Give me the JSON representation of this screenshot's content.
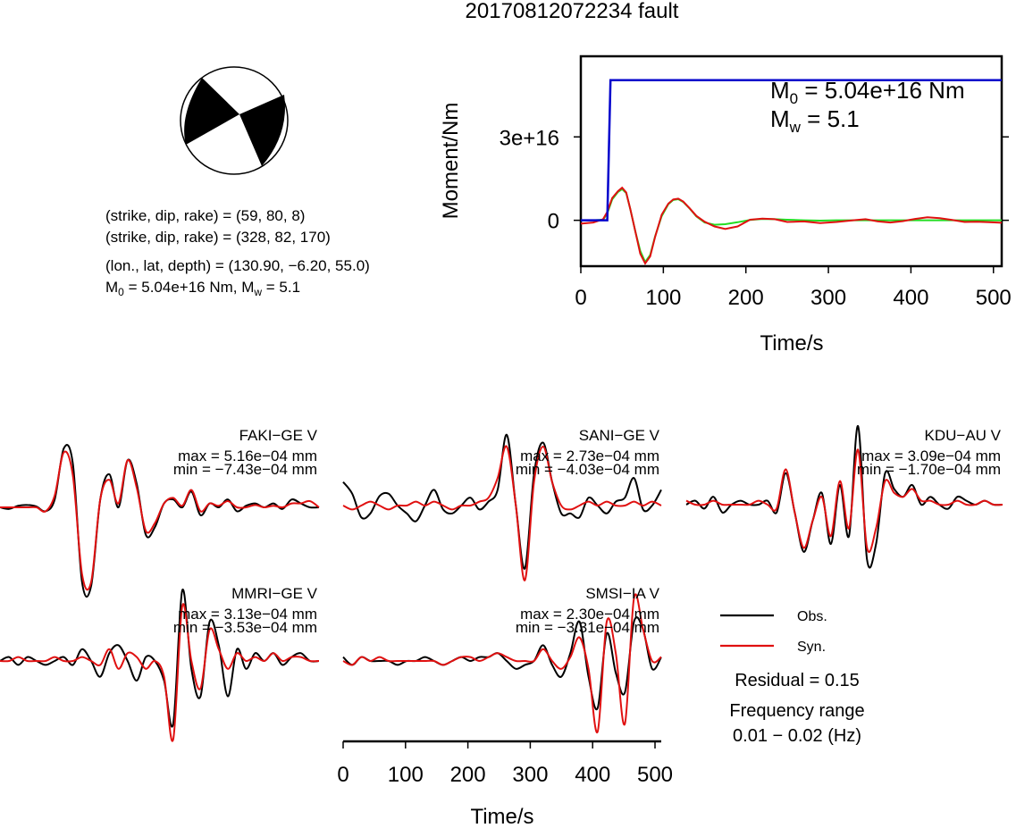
{
  "title": "20170812072234 fault",
  "mechanism": {
    "lines": [
      "(strike, dip, rake) = (59, 80, 8)",
      "(strike, dip, rake) = (328, 82, 170)",
      "(lon., lat, depth) = (130.90, −6.20, 55.0)"
    ],
    "m0_label": "M",
    "m0_sub": "0",
    "m0_text": " = 5.04e+16 Nm, M",
    "mw_sub": "w",
    "mw_text": " = 5.1"
  },
  "colors": {
    "obs": "#000000",
    "syn": "#e01010",
    "moment": "#0000cc",
    "stf_obs": "#e01010",
    "stf_syn": "#22dd22"
  },
  "chart_data": [
    {
      "type": "line",
      "name": "moment_rate",
      "ylabel": "Moment/Nm",
      "xlabel": "Time/s",
      "xlim": [
        0,
        510
      ],
      "x_ticks": [
        "0",
        "100",
        "200",
        "300",
        "400",
        "500"
      ],
      "x_tick_values": [
        0,
        100,
        200,
        300,
        400,
        500
      ],
      "y_ticks": [
        "0",
        "3e+16"
      ],
      "y_tick_values": [
        0,
        3e+16
      ],
      "ylim": [
        -1.65e+16,
        5.9e+16
      ],
      "annotation_m0": {
        "base": "M",
        "sub": "0",
        "text": " = 5.04e+16 Nm"
      },
      "annotation_mw": {
        "base": "M",
        "sub": "w",
        "text": " = 5.1"
      },
      "cumulative_moment": {
        "x": [
          0,
          27,
          32,
          36,
          510
        ],
        "y": [
          0,
          0,
          0,
          5.04e+16,
          5.04e+16
        ]
      },
      "series": [
        {
          "x": [
            0,
            15,
            27,
            32,
            38,
            45,
            50,
            55,
            60,
            66,
            72,
            78,
            84,
            90,
            98,
            106,
            112,
            118,
            124,
            132,
            140,
            150,
            162,
            175,
            190,
            205,
            220,
            235,
            250,
            270,
            290,
            310,
            330,
            345,
            360,
            375,
            390,
            405,
            420,
            435,
            450,
            465,
            480,
            495,
            510
          ],
          "y": [
            -1200000000000000.0,
            -800000000000000.0,
            400000000000000.0,
            3000000000000000.0,
            8000000000000000.0,
            1.05e+16,
            1.17e+16,
            1e+16,
            4000000000000000.0,
            -4000000000000000.0,
            -1.2e+16,
            -1.55e+16,
            -1.3e+16,
            -6000000000000000.0,
            2000000000000000.0,
            6000000000000000.0,
            7500000000000000.0,
            7800000000000000.0,
            6800000000000000.0,
            4300000000000000.0,
            1600000000000000.0,
            -500000000000000.0,
            -2200000000000000.0,
            -3100000000000000.0,
            -2200000000000000.0,
            200000000000000.0,
            600000000000000.0,
            400000000000000.0,
            -600000000000000.0,
            -400000000000000.0,
            -1000000000000000.0,
            -600000000000000.0,
            0.0,
            400000000000000.0,
            -400000000000000.0,
            -800000000000000.0,
            -300000000000000.0,
            500000000000000.0,
            1100000000000000.0,
            800000000000000.0,
            100000000000000.0,
            -600000000000000.0,
            -500000000000000.0,
            -700000000000000.0,
            -900000000000000.0
          ]
        },
        {
          "x": [
            0,
            15,
            27,
            32,
            38,
            45,
            50,
            55,
            60,
            66,
            72,
            78,
            84,
            90,
            98,
            106,
            112,
            118,
            124,
            132,
            140,
            150,
            162,
            175,
            190,
            205,
            220,
            235,
            250,
            270,
            290,
            310,
            330,
            350,
            380,
            410,
            440,
            470,
            510
          ],
          "y": [
            0,
            0,
            200000000000000.0,
            2500000000000000.0,
            7500000000000000.0,
            1.02e+16,
            1.12e+16,
            9800000000000000.0,
            4000000000000000.0,
            -4000000000000000.0,
            -1.1e+16,
            -1.5e+16,
            -1.25e+16,
            -5800000000000000.0,
            1500000000000000.0,
            5800000000000000.0,
            7300000000000000.0,
            7600000000000000.0,
            6600000000000000.0,
            4200000000000000.0,
            1400000000000000.0,
            -800000000000000.0,
            -1600000000000000.0,
            -1400000000000000.0,
            -700000000000000.0,
            100000000000000.0,
            500000000000000.0,
            400000000000000.0,
            200000000000000.0,
            0,
            -100000000000000.0,
            0,
            0,
            0,
            0,
            0,
            0,
            0,
            0
          ]
        }
      ]
    },
    {
      "type": "line",
      "name": "waveforms",
      "xlabel": "Time/s",
      "xlim": [
        0,
        510
      ],
      "x_ticks": [
        "0",
        "100",
        "200",
        "300",
        "400",
        "500"
      ],
      "x_tick_values": [
        0,
        100,
        200,
        300,
        400,
        500
      ],
      "stations": [
        {
          "name": "FAKI−GE V",
          "max": "max = 5.16e−04 mm",
          "min": "min = −7.43e−04 mm",
          "max_value": 0.000516,
          "min_value": -0.000743,
          "obs": [
            0.0,
            -0.02,
            0.02,
            0.03,
            0.01,
            -0.05,
            0.1,
            0.75,
            0.55,
            -0.95,
            -1.0,
            0.1,
            0.42,
            0.0,
            0.6,
            0.3,
            -0.35,
            -0.25,
            0.05,
            0.1,
            0.0,
            0.2,
            -0.1,
            0.05,
            0.0,
            0.1,
            -0.05,
            0.02,
            0.05,
            0.0,
            0.05,
            -0.02,
            0.1,
            0.05,
            0.0,
            0.0
          ],
          "syn": [
            0.0,
            0.0,
            0.0,
            0.0,
            0.0,
            -0.05,
            0.15,
            0.7,
            0.4,
            -0.85,
            -0.95,
            0.1,
            0.35,
            0.05,
            0.6,
            0.25,
            -0.3,
            -0.2,
            0.05,
            0.12,
            0.02,
            0.22,
            -0.05,
            0.05,
            0.02,
            0.08,
            0.0,
            0.0,
            0.03,
            0.0,
            0.02,
            0.0,
            0.05,
            0.05,
            0.08,
            0.0
          ]
        },
        {
          "name": "SANI−GE V",
          "max": "max = 2.73e−04 mm",
          "min": "min = −4.03e−04 mm",
          "max_value": 0.000273,
          "min_value": -0.000403,
          "obs": [
            0.3,
            0.15,
            -0.15,
            -0.1,
            0.12,
            0.15,
            0.0,
            -0.1,
            -0.2,
            0.0,
            0.2,
            -0.05,
            -0.1,
            0.0,
            0.1,
            -0.05,
            0.05,
            0.2,
            0.9,
            0.0,
            -0.8,
            0.4,
            0.8,
            0.3,
            -0.1,
            -0.1,
            -0.15,
            0.1,
            0.0,
            -0.1,
            0.05,
            0.1,
            0.35,
            -0.05,
            0.0,
            0.2
          ],
          "syn": [
            0.0,
            -0.05,
            0.0,
            0.05,
            0.0,
            -0.05,
            0.0,
            0.0,
            0.05,
            0.0,
            0.05,
            0.0,
            -0.05,
            0.0,
            0.0,
            0.05,
            0.1,
            0.35,
            0.75,
            0.0,
            -0.95,
            0.3,
            0.75,
            0.3,
            0.0,
            -0.05,
            0.0,
            0.05,
            0.0,
            0.05,
            0.0,
            0.0,
            0.05,
            0.0,
            0.05,
            0.0
          ]
        },
        {
          "name": "KDU−AU V",
          "max": "max = 3.09e−04 mm",
          "min": "min = −1.70e−04 mm",
          "max_value": 0.000309,
          "min_value": -0.00017,
          "obs": [
            0.0,
            0.05,
            -0.05,
            0.1,
            -0.1,
            0.0,
            0.05,
            0.0,
            0.0,
            0.05,
            -0.1,
            0.4,
            -0.1,
            -0.6,
            -0.2,
            0.15,
            -0.5,
            0.25,
            -0.4,
            1.0,
            -0.7,
            -0.5,
            0.4,
            0.2,
            0.1,
            0.25,
            0.0,
            0.1,
            0.0,
            -0.05,
            0.1,
            0.05,
            0.0,
            0.05,
            0.0,
            0.0
          ],
          "syn": [
            0.05,
            0.0,
            0.0,
            0.05,
            0.0,
            0.0,
            0.0,
            0.0,
            0.05,
            0.0,
            -0.05,
            0.45,
            -0.1,
            -0.55,
            -0.2,
            0.1,
            -0.4,
            0.3,
            -0.3,
            0.7,
            -0.55,
            -0.3,
            0.3,
            0.15,
            0.1,
            0.2,
            0.05,
            0.05,
            0.0,
            0.0,
            0.05,
            0.0,
            0.0,
            0.05,
            0.0,
            0.0
          ]
        },
        {
          "name": "MMRI−GE V",
          "max": "max = 3.13e−04 mm",
          "min": "min = −3.53e−04 mm",
          "max_value": 0.000313,
          "min_value": -0.000353,
          "obs": [
            0.0,
            0.05,
            -0.05,
            0.05,
            0.0,
            -0.05,
            0.0,
            0.05,
            -0.05,
            0.15,
            0.0,
            -0.2,
            0.1,
            0.2,
            0.0,
            -0.25,
            0.05,
            0.0,
            -0.25,
            -0.8,
            0.9,
            -0.1,
            -0.45,
            0.5,
            0.2,
            -0.45,
            0.15,
            -0.1,
            0.1,
            0.0,
            0.1,
            -0.05,
            0.05,
            0.1,
            0.0,
            0.0
          ],
          "syn": [
            0.0,
            0.0,
            0.05,
            0.0,
            0.0,
            0.0,
            0.05,
            0.0,
            0.0,
            0.05,
            0.0,
            -0.05,
            0.15,
            -0.1,
            0.1,
            0.05,
            -0.1,
            0.0,
            -0.2,
            -1.0,
            0.7,
            0.0,
            -0.35,
            0.4,
            0.15,
            -0.1,
            0.1,
            0.0,
            0.05,
            0.0,
            0.1,
            0.0,
            0.05,
            0.05,
            0.0,
            0.0
          ]
        },
        {
          "name": "SMSI−IA V",
          "max": "max = 2.30e−04 mm",
          "min": "min = −3.31e−04 mm",
          "max_value": 0.00023,
          "min_value": -0.000331,
          "obs": [
            0.05,
            -0.05,
            0.05,
            0.0,
            0.0,
            0.0,
            -0.05,
            0.0,
            0.0,
            0.05,
            0.0,
            -0.05,
            0.0,
            0.05,
            0.0,
            0.05,
            0.05,
            0.1,
            0.0,
            -0.1,
            -0.05,
            0.0,
            0.2,
            -0.05,
            -0.2,
            0.1,
            0.5,
            -0.2,
            -0.6,
            0.35,
            -0.15,
            -0.4,
            0.5,
            0.4,
            -0.1,
            0.05
          ],
          "syn": [
            0.0,
            -0.05,
            0.05,
            0.0,
            0.05,
            0.0,
            0.0,
            0.0,
            0.0,
            0.0,
            0.0,
            -0.05,
            0.0,
            0.05,
            0.05,
            0.0,
            0.05,
            0.1,
            0.05,
            0.0,
            0.0,
            0.0,
            0.15,
            0.0,
            -0.1,
            0.05,
            0.3,
            -0.1,
            -0.9,
            0.5,
            0.1,
            -0.8,
            0.8,
            0.4,
            0.0,
            0.05
          ]
        }
      ]
    }
  ],
  "legend": {
    "obs": "Obs.",
    "syn": "Syn."
  },
  "residual": "Residual = 0.15",
  "freq_label": "Frequency range",
  "freq_value": "0.01 − 0.02 (Hz)"
}
